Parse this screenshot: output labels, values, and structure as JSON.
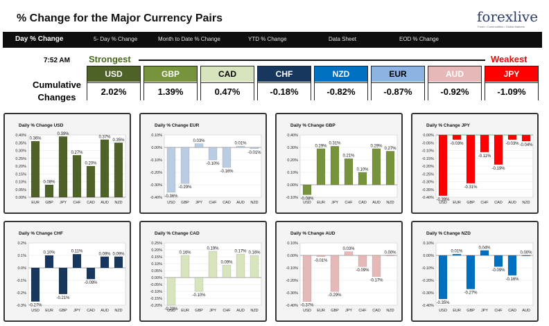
{
  "header": {
    "title": "% Change for the Major Currency Pairs",
    "logo": "forexlive",
    "logo_tagline": "Forex • Commodities • Global Markets"
  },
  "nav": [
    {
      "label": "Day % Change"
    },
    {
      "label": "5- Day % Change"
    },
    {
      "label": "Month to Date % Change"
    },
    {
      "label": "YTD % Change"
    },
    {
      "label": "Data Sheet"
    },
    {
      "label": "EOD % Change"
    }
  ],
  "summary": {
    "time": "7:52 AM",
    "strongest_label": "Strongest",
    "weakest_label": "Weakest",
    "cumulative_label": "Cumulative Changes",
    "currencies": [
      {
        "code": "USD",
        "change": "2.02%",
        "bg": "#4f6228",
        "fg": "#ffffff"
      },
      {
        "code": "GBP",
        "change": "1.39%",
        "bg": "#77933c",
        "fg": "#ffffff"
      },
      {
        "code": "CAD",
        "change": "0.47%",
        "bg": "#d7e4bd",
        "fg": "#000000"
      },
      {
        "code": "CHF",
        "change": "-0.18%",
        "bg": "#17375e",
        "fg": "#ffffff"
      },
      {
        "code": "NZD",
        "change": "-0.82%",
        "bg": "#0070c0",
        "fg": "#ffffff"
      },
      {
        "code": "EUR",
        "change": "-0.87%",
        "bg": "#8db3e2",
        "fg": "#000000"
      },
      {
        "code": "AUD",
        "change": "-0.92%",
        "bg": "#e6b9b8",
        "fg": "#ffffff"
      },
      {
        "code": "JPY",
        "change": "-1.09%",
        "bg": "#ff0000",
        "fg": "#ffffff"
      }
    ]
  },
  "chart_data": [
    {
      "type": "bar",
      "title": "Daily % Change USD",
      "color": "#4f6228",
      "categories": [
        "EUR",
        "GBP",
        "JPY",
        "CHF",
        "CAD",
        "AUD",
        "NZD"
      ],
      "values": [
        0.36,
        0.08,
        0.39,
        0.27,
        0.2,
        0.37,
        0.35
      ],
      "labels": [
        "0.36%",
        "0.08%",
        "0.39%",
        "0.27%",
        "0.20%",
        "0.37%",
        "0.35%"
      ],
      "ylim": [
        0,
        0.4
      ],
      "ticks": [
        "0.00%",
        "0.05%",
        "0.10%",
        "0.15%",
        "0.20%",
        "0.25%",
        "0.30%",
        "0.35%",
        "0.40%"
      ]
    },
    {
      "type": "bar",
      "title": "Daily % Change EUR",
      "color": "#b8cce4",
      "categories": [
        "USD",
        "GBP",
        "JPY",
        "CHF",
        "CAD",
        "AUD",
        "NZD"
      ],
      "values": [
        -0.36,
        -0.29,
        0.03,
        -0.1,
        -0.16,
        0.01,
        -0.01
      ],
      "labels": [
        "-0.36%",
        "-0.29%",
        "0.03%",
        "-0.10%",
        "-0.16%",
        "0.01%",
        "-0.01%"
      ],
      "ylim": [
        -0.4,
        0.1
      ],
      "ticks": [
        "-0.40%",
        "-0.30%",
        "-0.20%",
        "-0.10%",
        "0.00%",
        "0.10%"
      ]
    },
    {
      "type": "bar",
      "title": "Daily % Change GBP",
      "color": "#77933c",
      "categories": [
        "USD",
        "EUR",
        "JPY",
        "CHF",
        "CAD",
        "AUD",
        "NZD"
      ],
      "values": [
        -0.08,
        0.29,
        0.31,
        0.21,
        0.1,
        0.29,
        0.27
      ],
      "labels": [
        "-0.08%",
        "0.29%",
        "0.31%",
        "0.21%",
        "0.10%",
        "0.29%",
        "0.27%"
      ],
      "ylim": [
        -0.1,
        0.4
      ],
      "ticks": [
        "-0.10%",
        "0.00%",
        "0.10%",
        "0.20%",
        "0.30%",
        "0.40%"
      ]
    },
    {
      "type": "bar",
      "title": "Daily % Change JPY",
      "color": "#ff0000",
      "categories": [
        "USD",
        "EUR",
        "GBP",
        "CHF",
        "CAD",
        "AUD",
        "NZD"
      ],
      "values": [
        -0.39,
        -0.03,
        -0.31,
        -0.11,
        -0.19,
        -0.03,
        -0.04
      ],
      "labels": [
        "-0.39%",
        "-0.03%",
        "-0.31%",
        "-0.11%",
        "-0.19%",
        "-0.03%",
        "-0.04%"
      ],
      "ylim": [
        -0.4,
        0
      ],
      "ticks": [
        "-0.40%",
        "-0.35%",
        "-0.30%",
        "-0.25%",
        "-0.20%",
        "-0.15%",
        "-0.10%",
        "-0.05%",
        "0.00%"
      ]
    },
    {
      "type": "bar",
      "title": "Daily % Change CHF",
      "color": "#17375e",
      "categories": [
        "USD",
        "EUR",
        "GBP",
        "JPY",
        "CAD",
        "AUD",
        "NZD"
      ],
      "values": [
        -0.27,
        0.1,
        -0.21,
        0.11,
        -0.09,
        0.09,
        0.09
      ],
      "labels": [
        "-0.27%",
        "0.10%",
        "-0.21%",
        "0.11%",
        "-0.09%",
        "0.09%",
        "0.09%"
      ],
      "ylim": [
        -0.3,
        0.2
      ],
      "ticks": [
        "-0.3%",
        "-0.2%",
        "-0.1%",
        "0.0%",
        "0.1%",
        "0.2%"
      ]
    },
    {
      "type": "bar",
      "title": "Daily % Change CAD",
      "color": "#d7e4bd",
      "categories": [
        "USD",
        "EUR",
        "GBP",
        "JPY",
        "CHF",
        "AUD",
        "NZD"
      ],
      "values": [
        -0.2,
        0.16,
        -0.1,
        0.19,
        0.09,
        0.17,
        0.16
      ],
      "labels": [
        "-0.20%",
        "0.16%",
        "-0.10%",
        "0.19%",
        "0.09%",
        "0.17%",
        "0.16%"
      ],
      "ylim": [
        -0.2,
        0.25
      ],
      "ticks": [
        "-0.20%",
        "-0.15%",
        "-0.10%",
        "-0.05%",
        "0.00%",
        "0.05%",
        "0.10%",
        "0.15%",
        "0.20%",
        "0.25%"
      ]
    },
    {
      "type": "bar",
      "title": "Daily % Change AUD",
      "color": "#e6b9b8",
      "categories": [
        "USD",
        "EUR",
        "GBP",
        "JPY",
        "CHF",
        "CAD",
        "NZD"
      ],
      "values": [
        -0.37,
        -0.01,
        -0.29,
        0.03,
        -0.09,
        -0.17,
        0.0
      ],
      "labels": [
        "-0.37%",
        "-0.01%",
        "-0.29%",
        "0.03%",
        "-0.09%",
        "-0.17%",
        "0.00%"
      ],
      "ylim": [
        -0.4,
        0.1
      ],
      "ticks": [
        "-0.40%",
        "-0.30%",
        "-0.20%",
        "-0.10%",
        "0.00%",
        "0.10%"
      ]
    },
    {
      "type": "bar",
      "title": "Daily % Change NZD",
      "color": "#0070c0",
      "categories": [
        "USD",
        "EUR",
        "GBP",
        "JPY",
        "CHF",
        "CAD",
        "AUD"
      ],
      "values": [
        -0.35,
        0.01,
        -0.27,
        0.04,
        -0.09,
        -0.16,
        0.0
      ],
      "labels": [
        "-0.35%",
        "0.01%",
        "-0.27%",
        "0.04%",
        "-0.09%",
        "-0.16%",
        "0.00%"
      ],
      "ylim": [
        -0.4,
        0.1
      ],
      "ticks": [
        "-0.40%",
        "-0.30%",
        "-0.20%",
        "-0.10%",
        "0.00%",
        "0.10%"
      ]
    }
  ]
}
